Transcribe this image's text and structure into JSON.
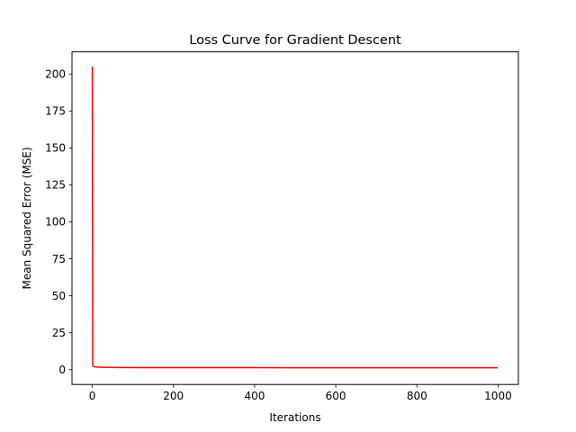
{
  "chart_data": {
    "type": "line",
    "title": "Loss Curve for Gradient Descent",
    "xlabel": "Iterations",
    "ylabel": "Mean Squared Error (MSE)",
    "xlim": [
      -50,
      1050
    ],
    "ylim": [
      -10,
      215
    ],
    "xticks": [
      0,
      200,
      400,
      600,
      800,
      1000
    ],
    "yticks": [
      0,
      25,
      50,
      75,
      100,
      125,
      150,
      175,
      200
    ],
    "grid": false,
    "legend": "none",
    "series": [
      {
        "color": "#ff0000",
        "x": [
          0,
          1,
          2,
          3,
          5,
          8,
          12,
          20,
          30,
          50,
          80,
          120,
          200,
          300,
          400,
          500,
          600,
          700,
          800,
          900,
          999
        ],
        "y": [
          205,
          3.0,
          2.4,
          2.2,
          2.0,
          1.9,
          1.8,
          1.7,
          1.6,
          1.5,
          1.45,
          1.4,
          1.38,
          1.36,
          1.35,
          1.34,
          1.34,
          1.33,
          1.33,
          1.33,
          1.33
        ]
      }
    ]
  }
}
